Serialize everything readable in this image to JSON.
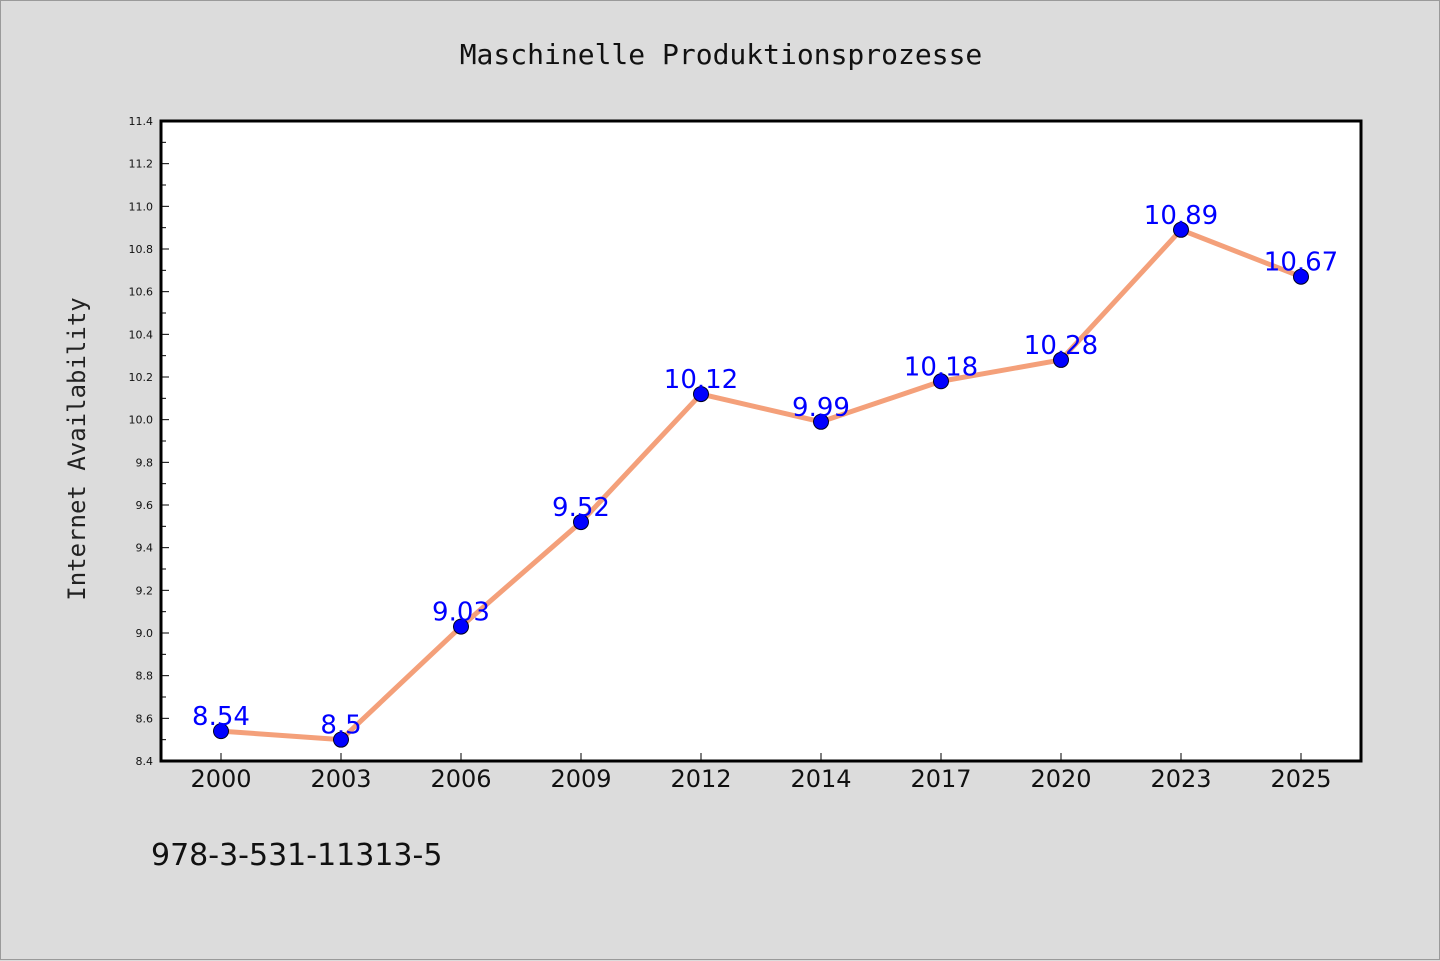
{
  "chart_data": {
    "type": "line",
    "title": "Maschinelle Produktionsprozesse",
    "ylabel": "Internet Availability",
    "xlabel": "",
    "categories": [
      "2000",
      "2003",
      "2006",
      "2009",
      "2012",
      "2014",
      "2017",
      "2020",
      "2023",
      "2025"
    ],
    "series": [
      {
        "values": [
          8.54,
          8.5,
          9.03,
          9.52,
          10.12,
          9.99,
          10.18,
          10.28,
          10.89,
          10.67
        ],
        "data_labels": [
          "8.54",
          "8.5",
          "9.03",
          "9.52",
          "10.12",
          "9.99",
          "10.18",
          "10.28",
          "10.89",
          "10.67"
        ]
      }
    ],
    "ylim": [
      8.4,
      11.4
    ],
    "yticks": [
      "8.4",
      "8.6",
      "8.8",
      "9.0",
      "9.2",
      "9.4",
      "9.6",
      "9.8",
      "10.0",
      "10.2",
      "10.4",
      "10.6",
      "10.8",
      "11.0",
      "11.2",
      "11.4"
    ],
    "grid": false,
    "legend": "none",
    "footer_text": "978-3-531-11313-5",
    "colors": {
      "line": "#f4a07a",
      "marker": "#0000ff",
      "data_label": "#0000ff",
      "page_background": "#dcdcdc",
      "plot_background": "#ffffff"
    }
  }
}
